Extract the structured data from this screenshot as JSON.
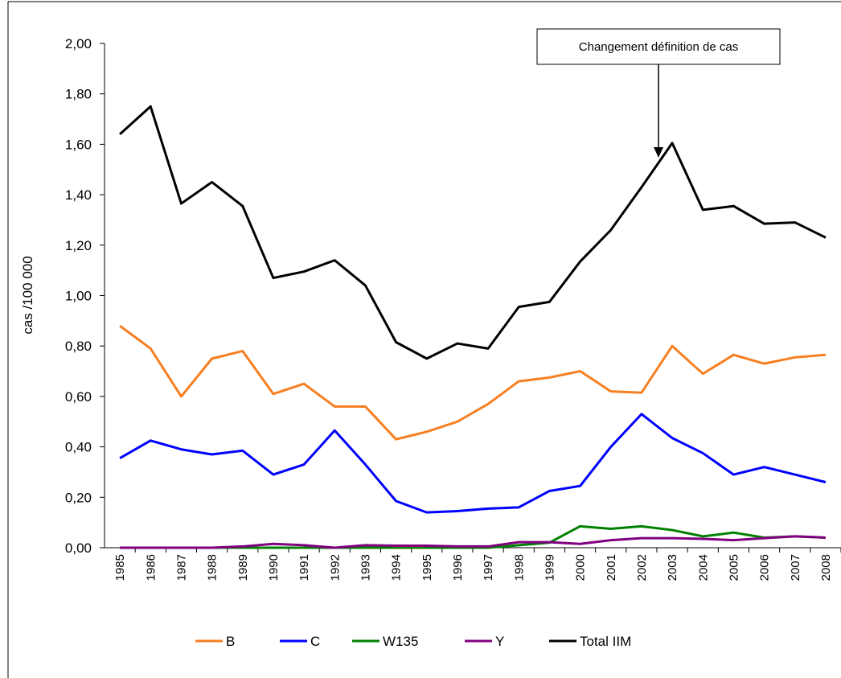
{
  "chart_data": {
    "type": "line",
    "y_label": "cas /100 000",
    "annotation": "Changement définition de cas",
    "categories": [
      "1985",
      "1986",
      "1987",
      "1988",
      "1989",
      "1990",
      "1991",
      "1992",
      "1993",
      "1994",
      "1995",
      "1996",
      "1997",
      "1998",
      "1999",
      "2000",
      "2001",
      "2002",
      "2003",
      "2004",
      "2005",
      "2006",
      "2007",
      "2008"
    ],
    "series": [
      {
        "name": "B",
        "color": "#f77f21",
        "values": [
          0.88,
          0.79,
          0.6,
          0.75,
          0.78,
          0.61,
          0.65,
          0.56,
          0.56,
          0.43,
          0.46,
          0.5,
          0.57,
          0.66,
          0.675,
          0.7,
          0.62,
          0.615,
          0.8,
          0.69,
          0.765,
          0.73,
          0.755,
          0.765
        ]
      },
      {
        "name": "C",
        "color": "#0000ff",
        "values": [
          0.355,
          0.425,
          0.39,
          0.37,
          0.385,
          0.29,
          0.33,
          0.465,
          0.33,
          0.185,
          0.14,
          0.145,
          0.155,
          0.16,
          0.225,
          0.245,
          0.4,
          0.53,
          0.435,
          0.375,
          0.29,
          0.32,
          0.29,
          0.26
        ]
      },
      {
        "name": "W135",
        "color": "#008000",
        "values": [
          0,
          0,
          0,
          0,
          0,
          0,
          0,
          0,
          0,
          0,
          0,
          0,
          0,
          0.01,
          0.02,
          0.085,
          0.075,
          0.085,
          0.07,
          0.045,
          0.06,
          0.04,
          0.045,
          0.04
        ]
      },
      {
        "name": "Y",
        "color": "#800080",
        "values": [
          0,
          0,
          0,
          0,
          0.005,
          0.015,
          0.01,
          0,
          0.01,
          0.008,
          0.008,
          0.005,
          0.005,
          0.022,
          0.022,
          0.015,
          0.03,
          0.038,
          0.038,
          0.035,
          0.03,
          0.038,
          0.045,
          0.04
        ]
      },
      {
        "name": "Total IIM",
        "color": "#000000",
        "values": [
          1.64,
          1.75,
          1.365,
          1.45,
          1.355,
          1.07,
          1.095,
          1.14,
          1.04,
          0.815,
          0.75,
          0.81,
          0.79,
          0.955,
          0.975,
          1.135,
          1.26,
          1.43,
          1.605,
          1.34,
          1.355,
          1.285,
          1.29,
          1.23
        ]
      }
    ],
    "ylim": [
      0,
      2
    ],
    "yticks": [
      {
        "value": 0,
        "label": "0,00"
      },
      {
        "value": 0.2,
        "label": "0,20"
      },
      {
        "value": 0.4,
        "label": "0,40"
      },
      {
        "value": 0.6,
        "label": "0,60"
      },
      {
        "value": 0.8,
        "label": "0,80"
      },
      {
        "value": 1,
        "label": "1,00"
      },
      {
        "value": 1.2,
        "label": "1,20"
      },
      {
        "value": 1.4,
        "label": "1,40"
      },
      {
        "value": 1.6,
        "label": "1,60"
      },
      {
        "value": 1.8,
        "label": "1,80"
      },
      {
        "value": 2,
        "label": "2,00"
      }
    ],
    "legend": "bottom"
  }
}
